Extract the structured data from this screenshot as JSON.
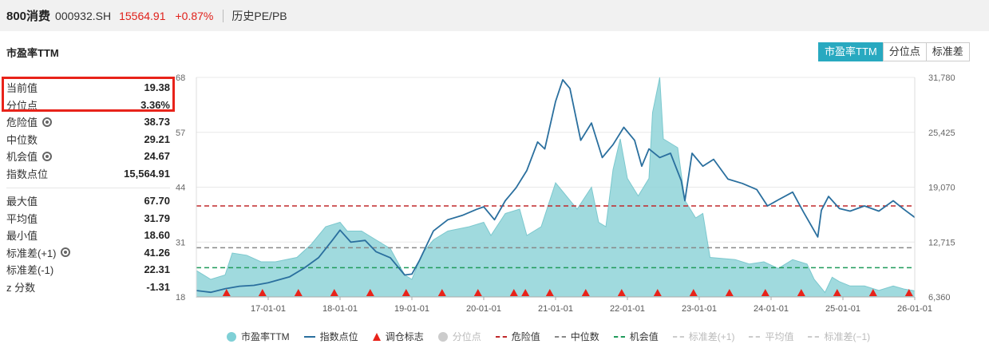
{
  "header": {
    "name": "800消费",
    "code": "000932.SH",
    "price": "15564.91",
    "change": "+0.87%",
    "link": "历史PE/PB"
  },
  "section_title": "市盈率TTM",
  "tabs": [
    {
      "label": "市盈率TTM",
      "active": true
    },
    {
      "label": "分位点",
      "active": false
    },
    {
      "label": "标准差",
      "active": false
    }
  ],
  "stats_top": [
    {
      "label": "当前值",
      "value": "19.38",
      "gear": false
    },
    {
      "label": "分位点",
      "value": "3.36%",
      "gear": false
    },
    {
      "label": "危险值",
      "value": "38.73",
      "gear": true
    },
    {
      "label": "中位数",
      "value": "29.21",
      "gear": false
    },
    {
      "label": "机会值",
      "value": "24.67",
      "gear": true
    },
    {
      "label": "指数点位",
      "value": "15,564.91",
      "gear": false
    }
  ],
  "stats_bottom": [
    {
      "label": "最大值",
      "value": "67.70",
      "gear": false
    },
    {
      "label": "平均值",
      "value": "31.79",
      "gear": false
    },
    {
      "label": "最小值",
      "value": "18.60",
      "gear": false
    },
    {
      "label": "标准差(+1)",
      "value": "41.26",
      "gear": true
    },
    {
      "label": "标准差(-1)",
      "value": "22.31",
      "gear": false
    },
    {
      "label": "z 分数",
      "value": "-1.31",
      "gear": false
    }
  ],
  "legend": [
    {
      "label": "市盈率TTM",
      "kind": "circle",
      "color": "#7fd0d6",
      "dim": false
    },
    {
      "label": "指数点位",
      "kind": "line",
      "color": "#2a6f9e",
      "dim": false
    },
    {
      "label": "调仓标志",
      "kind": "tri",
      "color": "#e8231a",
      "dim": false
    },
    {
      "label": "分位点",
      "kind": "circle",
      "color": "#cccccc",
      "dim": true
    },
    {
      "label": "危险值",
      "kind": "dash",
      "color": "#c0282b",
      "dim": false
    },
    {
      "label": "中位数",
      "kind": "dash",
      "color": "#888888",
      "dim": false
    },
    {
      "label": "机会值",
      "kind": "dash",
      "color": "#1f9a5a",
      "dim": false
    },
    {
      "label": "标准差(+1)",
      "kind": "dash",
      "color": "#cccccc",
      "dim": true
    },
    {
      "label": "平均值",
      "kind": "dash",
      "color": "#cccccc",
      "dim": true
    },
    {
      "label": "标准差(−1)",
      "kind": "dash",
      "color": "#cccccc",
      "dim": true
    }
  ],
  "chart_data": {
    "type": "area",
    "x_ticks": [
      "17-01-01",
      "18-01-01",
      "19-01-01",
      "20-01-01",
      "21-01-01",
      "22-01-01",
      "23-01-01",
      "24-01-01",
      "25-01-01",
      "26-01-01"
    ],
    "y_left_ticks": [
      "18",
      "31",
      "44",
      "57",
      "68"
    ],
    "y_left_range": [
      18,
      68
    ],
    "y_right_ticks": [
      "6,360",
      "12,715",
      "19,070",
      "25,425",
      "31,780"
    ],
    "y_right_range": [
      6360,
      31780
    ],
    "x_range": [
      2016.0,
      2026.0
    ],
    "reference_lines": {
      "danger": 38.73,
      "median": 29.21,
      "opportunity": 24.67
    },
    "pe_series": [
      [
        2016.0,
        24
      ],
      [
        2016.2,
        22
      ],
      [
        2016.4,
        23
      ],
      [
        2016.5,
        28
      ],
      [
        2016.7,
        27.5
      ],
      [
        2016.9,
        26
      ],
      [
        2017.1,
        26
      ],
      [
        2017.4,
        27
      ],
      [
        2017.6,
        30
      ],
      [
        2017.8,
        34
      ],
      [
        2018.0,
        35
      ],
      [
        2018.1,
        33
      ],
      [
        2018.3,
        33
      ],
      [
        2018.5,
        31
      ],
      [
        2018.7,
        29
      ],
      [
        2018.9,
        23
      ],
      [
        2019.0,
        22
      ],
      [
        2019.15,
        28
      ],
      [
        2019.3,
        31
      ],
      [
        2019.5,
        33
      ],
      [
        2019.8,
        34
      ],
      [
        2020.0,
        35
      ],
      [
        2020.1,
        32
      ],
      [
        2020.3,
        37
      ],
      [
        2020.5,
        38
      ],
      [
        2020.6,
        32
      ],
      [
        2020.8,
        34
      ],
      [
        2021.0,
        44
      ],
      [
        2021.1,
        42
      ],
      [
        2021.3,
        38
      ],
      [
        2021.5,
        43
      ],
      [
        2021.6,
        35
      ],
      [
        2021.7,
        34
      ],
      [
        2021.8,
        47
      ],
      [
        2021.9,
        54
      ],
      [
        2022.0,
        45
      ],
      [
        2022.15,
        41
      ],
      [
        2022.3,
        45
      ],
      [
        2022.35,
        60
      ],
      [
        2022.45,
        68
      ],
      [
        2022.5,
        54
      ],
      [
        2022.7,
        52
      ],
      [
        2022.8,
        40
      ],
      [
        2022.95,
        36
      ],
      [
        2023.05,
        37
      ],
      [
        2023.15,
        27
      ],
      [
        2023.5,
        26.5
      ],
      [
        2023.7,
        25.5
      ],
      [
        2023.9,
        26
      ],
      [
        2024.1,
        24.5
      ],
      [
        2024.3,
        26.5
      ],
      [
        2024.5,
        25.5
      ],
      [
        2024.6,
        22
      ],
      [
        2024.75,
        19
      ],
      [
        2024.85,
        22.5
      ],
      [
        2024.95,
        21.5
      ],
      [
        2025.1,
        20.5
      ],
      [
        2025.3,
        20.5
      ],
      [
        2025.5,
        19.5
      ],
      [
        2025.7,
        20.5
      ],
      [
        2025.85,
        19.8
      ],
      [
        2026.0,
        19.38
      ]
    ],
    "index_series": [
      [
        2016.0,
        7100
      ],
      [
        2016.2,
        6900
      ],
      [
        2016.4,
        7300
      ],
      [
        2016.6,
        7600
      ],
      [
        2016.8,
        7700
      ],
      [
        2017.0,
        8000
      ],
      [
        2017.3,
        8700
      ],
      [
        2017.5,
        9700
      ],
      [
        2017.7,
        10900
      ],
      [
        2017.9,
        13000
      ],
      [
        2018.0,
        14100
      ],
      [
        2018.15,
        12700
      ],
      [
        2018.35,
        12900
      ],
      [
        2018.5,
        11600
      ],
      [
        2018.7,
        10900
      ],
      [
        2018.9,
        8900
      ],
      [
        2019.0,
        9000
      ],
      [
        2019.1,
        10500
      ],
      [
        2019.3,
        14000
      ],
      [
        2019.5,
        15300
      ],
      [
        2019.7,
        15800
      ],
      [
        2019.9,
        16500
      ],
      [
        2020.0,
        16800
      ],
      [
        2020.15,
        15300
      ],
      [
        2020.3,
        17500
      ],
      [
        2020.45,
        19000
      ],
      [
        2020.6,
        21000
      ],
      [
        2020.75,
        24300
      ],
      [
        2020.85,
        23500
      ],
      [
        2021.0,
        29000
      ],
      [
        2021.1,
        31500
      ],
      [
        2021.2,
        30500
      ],
      [
        2021.35,
        24500
      ],
      [
        2021.5,
        26500
      ],
      [
        2021.65,
        22500
      ],
      [
        2021.8,
        24000
      ],
      [
        2021.95,
        26000
      ],
      [
        2022.1,
        24500
      ],
      [
        2022.2,
        21500
      ],
      [
        2022.3,
        23500
      ],
      [
        2022.45,
        22500
      ],
      [
        2022.6,
        23000
      ],
      [
        2022.75,
        19800
      ],
      [
        2022.8,
        17500
      ],
      [
        2022.9,
        23000
      ],
      [
        2023.05,
        21500
      ],
      [
        2023.2,
        22300
      ],
      [
        2023.4,
        20000
      ],
      [
        2023.6,
        19500
      ],
      [
        2023.8,
        18800
      ],
      [
        2023.95,
        16900
      ],
      [
        2024.1,
        17600
      ],
      [
        2024.3,
        18500
      ],
      [
        2024.45,
        16200
      ],
      [
        2024.65,
        13300
      ],
      [
        2024.7,
        16400
      ],
      [
        2024.8,
        18000
      ],
      [
        2024.95,
        16600
      ],
      [
        2025.1,
        16300
      ],
      [
        2025.3,
        16900
      ],
      [
        2025.5,
        16300
      ],
      [
        2025.7,
        17500
      ],
      [
        2025.85,
        16500
      ],
      [
        2026.0,
        15565
      ]
    ],
    "rebalance_markers": [
      2016.42,
      2016.92,
      2017.42,
      2017.92,
      2018.42,
      2018.92,
      2019.42,
      2019.92,
      2020.42,
      2020.58,
      2020.92,
      2021.42,
      2021.92,
      2022.42,
      2022.92,
      2023.42,
      2023.92,
      2024.42,
      2024.92,
      2025.42,
      2025.92
    ]
  }
}
